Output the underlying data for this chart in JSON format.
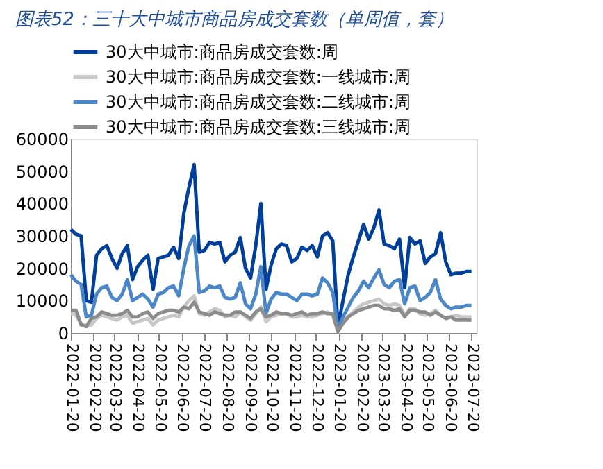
{
  "chart_data": {
    "type": "line",
    "title": "图表52：三十大中城市商品房成交套数（单周值，套）",
    "x": [
      "2022-01-20",
      "2022-01-27",
      "2022-02-03",
      "2022-02-10",
      "2022-02-17",
      "2022-02-24",
      "2022-03-03",
      "2022-03-10",
      "2022-03-17",
      "2022-03-24",
      "2022-03-31",
      "2022-04-07",
      "2022-04-14",
      "2022-04-21",
      "2022-04-28",
      "2022-05-05",
      "2022-05-12",
      "2022-05-19",
      "2022-05-26",
      "2022-06-02",
      "2022-06-09",
      "2022-06-16",
      "2022-06-23",
      "2022-06-30",
      "2022-07-07",
      "2022-07-14",
      "2022-07-21",
      "2022-07-28",
      "2022-08-04",
      "2022-08-11",
      "2022-08-18",
      "2022-08-25",
      "2022-09-01",
      "2022-09-08",
      "2022-09-15",
      "2022-09-22",
      "2022-09-29",
      "2022-10-06",
      "2022-10-13",
      "2022-10-20",
      "2022-10-27",
      "2022-11-03",
      "2022-11-10",
      "2022-11-17",
      "2022-11-24",
      "2022-12-01",
      "2022-12-08",
      "2022-12-15",
      "2022-12-22",
      "2022-12-29",
      "2023-01-05",
      "2023-01-12",
      "2023-01-19",
      "2023-01-26",
      "2023-02-02",
      "2023-02-09",
      "2023-02-16",
      "2023-02-23",
      "2023-03-02",
      "2023-03-09",
      "2023-03-16",
      "2023-03-23",
      "2023-03-30",
      "2023-04-06",
      "2023-04-13",
      "2023-04-20",
      "2023-04-27",
      "2023-05-04",
      "2023-05-11",
      "2023-05-18",
      "2023-05-25",
      "2023-06-01",
      "2023-06-08",
      "2023-06-15",
      "2023-06-22",
      "2023-06-29",
      "2023-07-06",
      "2023-07-13",
      "2023-07-20"
    ],
    "series": [
      {
        "name": "30大中城市:商品房成交套数:周",
        "color": "#003f9a",
        "values": [
          32000,
          30500,
          30000,
          10000,
          9500,
          24000,
          26000,
          27000,
          23000,
          20000,
          24500,
          27000,
          16500,
          20500,
          22500,
          24000,
          13500,
          23000,
          23500,
          24000,
          26500,
          23000,
          37000,
          45000,
          52000,
          25000,
          25500,
          28000,
          27500,
          28000,
          22000,
          24000,
          25000,
          29500,
          20000,
          17000,
          27000,
          40000,
          13500,
          21000,
          26000,
          27500,
          27000,
          22000,
          23000,
          26500,
          25500,
          27000,
          23500,
          30000,
          31000,
          28500,
          2000,
          10000,
          18000,
          23500,
          28500,
          33500,
          29000,
          32500,
          38000,
          27500,
          27000,
          26000,
          29000,
          14000,
          29500,
          27500,
          28500,
          21500,
          23500,
          24500,
          31000,
          22000,
          18000,
          18500,
          18500,
          19000,
          19000
        ]
      },
      {
        "name": "30大中城市:商品房成交套数:一线城市:周",
        "color": "#c8c8c8",
        "values": [
          6000,
          5500,
          3000,
          2000,
          2500,
          4500,
          5500,
          5000,
          4500,
          4000,
          5000,
          5500,
          3000,
          3500,
          4000,
          4500,
          2500,
          4000,
          4500,
          5000,
          5500,
          5000,
          8000,
          10000,
          11500,
          6000,
          5500,
          6500,
          7500,
          7000,
          5000,
          5500,
          5000,
          6500,
          5000,
          4000,
          6000,
          8000,
          3500,
          5000,
          5500,
          6000,
          6000,
          5000,
          5000,
          5500,
          5000,
          5000,
          5500,
          6000,
          6500,
          5500,
          500,
          3000,
          5000,
          6500,
          8000,
          9000,
          9500,
          10000,
          10500,
          9000,
          8500,
          9000,
          8500,
          5500,
          7500,
          7500,
          6000,
          5500,
          6000,
          7000,
          5500,
          4500,
          5000,
          5500,
          5000,
          5000,
          5000
        ]
      },
      {
        "name": "30大中城市:商品房成交套数:二线城市:周",
        "color": "#4a86c8",
        "values": [
          18000,
          16000,
          15000,
          5000,
          5500,
          12000,
          14000,
          14500,
          11000,
          10000,
          12000,
          16500,
          10000,
          11000,
          12000,
          10500,
          8000,
          12000,
          12500,
          14000,
          14500,
          11500,
          20000,
          27000,
          30000,
          12500,
          13000,
          14500,
          14000,
          14500,
          11000,
          10500,
          11000,
          15500,
          9000,
          7500,
          12000,
          20500,
          6000,
          10500,
          12500,
          12000,
          12000,
          11000,
          10000,
          12000,
          12000,
          11500,
          12000,
          17000,
          15500,
          12500,
          1500,
          5000,
          8000,
          11000,
          13000,
          16000,
          14000,
          17000,
          19500,
          15000,
          14000,
          16000,
          16500,
          9000,
          14000,
          14500,
          10000,
          11000,
          12500,
          16500,
          10500,
          8500,
          7500,
          8000,
          8000,
          8500,
          8500
        ]
      },
      {
        "name": "30大中城市:商品房成交套数:三线城市:周",
        "color": "#8c8c8c",
        "values": [
          7000,
          7000,
          2500,
          2000,
          4500,
          5000,
          6500,
          6000,
          5500,
          5500,
          6000,
          7000,
          5000,
          5000,
          6000,
          6500,
          4500,
          6000,
          6500,
          7000,
          7000,
          6500,
          8000,
          7500,
          9500,
          6500,
          6000,
          5500,
          6500,
          6000,
          5500,
          5500,
          6500,
          6500,
          5500,
          4500,
          6500,
          7500,
          5000,
          5500,
          6500,
          6000,
          6000,
          5500,
          6000,
          6500,
          5500,
          6000,
          6000,
          6500,
          6000,
          6000,
          500,
          3000,
          5000,
          6000,
          7000,
          7500,
          8000,
          8500,
          8500,
          7500,
          7500,
          7000,
          7500,
          5000,
          7000,
          7000,
          6500,
          6500,
          5500,
          6500,
          5500,
          4500,
          5000,
          4000,
          4000,
          4000,
          4000
        ]
      }
    ],
    "xlim": [
      "2022-01-20",
      "2023-07-27"
    ],
    "xticks": [
      "2022-01-20",
      "2022-02-20",
      "2022-03-20",
      "2022-04-20",
      "2022-05-20",
      "2022-06-20",
      "2022-07-20",
      "2022-08-20",
      "2022-09-20",
      "2022-10-20",
      "2022-11-20",
      "2022-12-20",
      "2023-01-20",
      "2023-02-20",
      "2023-03-20",
      "2023-04-20",
      "2023-05-20",
      "2023-06-20",
      "2023-07-20"
    ],
    "ylim": [
      0,
      60000
    ],
    "yticks": [
      0,
      10000,
      20000,
      30000,
      40000,
      50000,
      60000
    ],
    "legend": "top",
    "line_style": "solid",
    "grid": false
  }
}
